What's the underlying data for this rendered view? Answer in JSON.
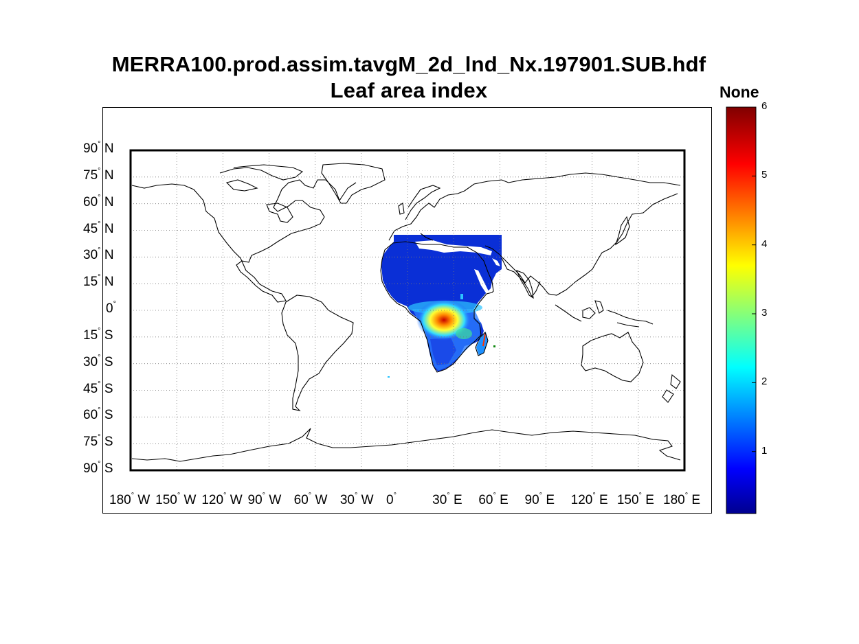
{
  "title_line1": "MERRA100.prod.assim.tavgM_2d_lnd_Nx.197901.SUB.hdf",
  "title_line2": "Leaf area index",
  "colorbar": {
    "unit_label": "None",
    "ticks": [
      "6",
      "5",
      "4",
      "3",
      "2",
      "1"
    ],
    "colormap": "jet",
    "range": [
      0.1,
      6
    ]
  },
  "latitude_labels": [
    {
      "deg": "90",
      "hemi": "N"
    },
    {
      "deg": "75",
      "hemi": "N"
    },
    {
      "deg": "60",
      "hemi": "N"
    },
    {
      "deg": "45",
      "hemi": "N"
    },
    {
      "deg": "30",
      "hemi": "N"
    },
    {
      "deg": "15",
      "hemi": "N"
    },
    {
      "deg": "0",
      "hemi": ""
    },
    {
      "deg": "15",
      "hemi": "S"
    },
    {
      "deg": "30",
      "hemi": "S"
    },
    {
      "deg": "45",
      "hemi": "S"
    },
    {
      "deg": "60",
      "hemi": "S"
    },
    {
      "deg": "75",
      "hemi": "S"
    },
    {
      "deg": "90",
      "hemi": "S"
    }
  ],
  "longitude_labels": [
    {
      "deg": "180",
      "hemi": "W"
    },
    {
      "deg": "150",
      "hemi": "W"
    },
    {
      "deg": "120",
      "hemi": "W"
    },
    {
      "deg": "90",
      "hemi": "W"
    },
    {
      "deg": "60",
      "hemi": "W"
    },
    {
      "deg": "30",
      "hemi": "W"
    },
    {
      "deg": "0",
      "hemi": ""
    },
    {
      "deg": "30",
      "hemi": "E"
    },
    {
      "deg": "60",
      "hemi": "E"
    },
    {
      "deg": "90",
      "hemi": "E"
    },
    {
      "deg": "120",
      "hemi": "E"
    },
    {
      "deg": "150",
      "hemi": "E"
    },
    {
      "deg": "180",
      "hemi": "E"
    }
  ],
  "map": {
    "projection": "equirectangular",
    "grid": true,
    "data_region": "Africa and Arabian Peninsula",
    "colors": {
      "frame": "#000000",
      "grid": "#888888",
      "coast": "#000000"
    }
  }
}
